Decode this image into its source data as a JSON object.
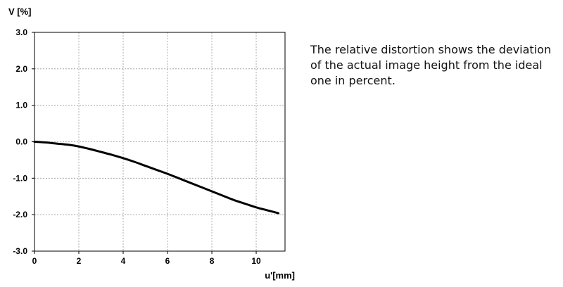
{
  "description": {
    "lines": [
      "The relative distortion shows the deviation",
      "of the actual image height from the ideal",
      "one in percent."
    ]
  },
  "chart_data": {
    "type": "line",
    "title": "",
    "xlabel": "u'[mm]",
    "ylabel": "V [%]",
    "xlim": [
      0,
      11.3
    ],
    "ylim": [
      -3.0,
      3.0
    ],
    "x_ticks": [
      0,
      2,
      4,
      6,
      8,
      10
    ],
    "x_tick_labels": [
      "0",
      "2",
      "4",
      "6",
      "8",
      "10"
    ],
    "y_ticks": [
      3.0,
      2.0,
      1.0,
      0.0,
      -1.0,
      -2.0,
      -3.0
    ],
    "y_tick_labels": [
      "3.0",
      "2.0",
      "1.0",
      "0.0",
      "-1.0",
      "-2.0",
      "-3.0"
    ],
    "grid": true,
    "legend": "none",
    "series": [
      {
        "color": "#000000",
        "x": [
          0,
          0.5,
          1.0,
          1.5,
          2.0,
          2.5,
          3.0,
          3.5,
          4.0,
          4.5,
          5.0,
          5.5,
          6.0,
          6.5,
          7.0,
          7.5,
          8.0,
          8.5,
          9.0,
          9.5,
          10.0,
          10.5,
          11.0
        ],
        "y": [
          0.0,
          -0.02,
          -0.05,
          -0.08,
          -0.13,
          -0.2,
          -0.28,
          -0.36,
          -0.45,
          -0.55,
          -0.66,
          -0.77,
          -0.88,
          -1.0,
          -1.12,
          -1.24,
          -1.36,
          -1.48,
          -1.6,
          -1.7,
          -1.8,
          -1.88,
          -1.96
        ]
      }
    ]
  }
}
